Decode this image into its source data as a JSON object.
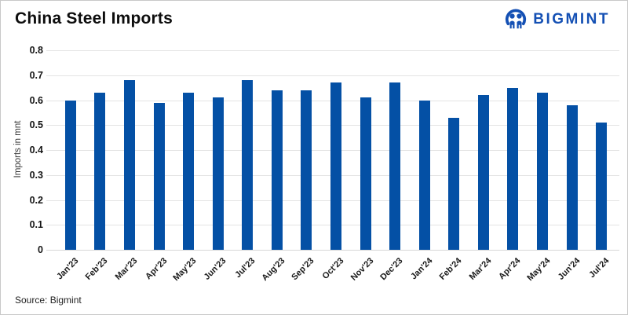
{
  "header": {
    "title": "China Steel Imports",
    "brand": "BIGMINT"
  },
  "footer": {
    "source": "Source: Bigmint"
  },
  "colors": {
    "bar": "#0450a5",
    "brand_blue": "#1450b4",
    "gridline": "#e4e4e4"
  },
  "chart_data": {
    "type": "bar",
    "title": "China Steel Imports",
    "categories": [
      "Jan'23",
      "Feb'23",
      "Mar'23",
      "Apr'23",
      "May'23",
      "Jun'23",
      "Jul'23",
      "Aug'23",
      "Sep'23",
      "Oct'23",
      "Nov'23",
      "Dec'23",
      "Jan'24",
      "Feb'24",
      "Mar'24",
      "Apr'24",
      "May'24",
      "Jun'24",
      "Jul'24"
    ],
    "values": [
      0.6,
      0.63,
      0.68,
      0.59,
      0.63,
      0.61,
      0.68,
      0.64,
      0.64,
      0.67,
      0.61,
      0.67,
      0.6,
      0.53,
      0.62,
      0.65,
      0.63,
      0.58,
      0.51
    ],
    "xlabel": "",
    "ylabel": "Imports in mnt",
    "ylim": [
      0,
      0.8
    ],
    "yticks": [
      0,
      0.1,
      0.2,
      0.3,
      0.4,
      0.5,
      0.6,
      0.7,
      0.8
    ],
    "grid": "horizontal",
    "legend": "none",
    "bar_color": "#0450a5"
  }
}
